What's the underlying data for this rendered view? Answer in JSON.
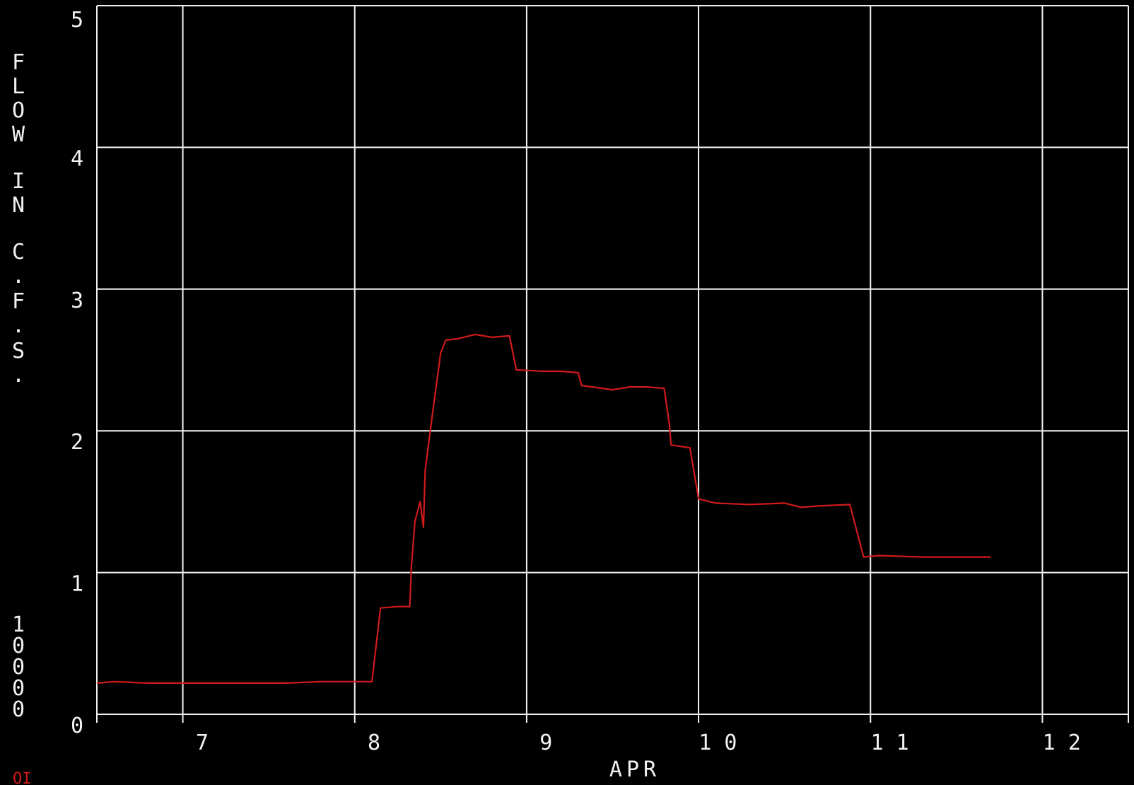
{
  "chart_data": {
    "type": "line",
    "title": "",
    "xlabel": "APR",
    "ylabel": "FLOW IN C.F.S.",
    "ylabel_multiplier": "10000",
    "xlim": [
      6.4,
      12.4
    ],
    "ylim": [
      0,
      5
    ],
    "x_ticks": [
      {
        "value": 7,
        "label": "7"
      },
      {
        "value": 8,
        "label": "8"
      },
      {
        "value": 9,
        "label": "9"
      },
      {
        "value": 10,
        "label": "10"
      },
      {
        "value": 11,
        "label": "11"
      },
      {
        "value": 12,
        "label": "12"
      }
    ],
    "y_ticks": [
      {
        "value": 0,
        "label": "0"
      },
      {
        "value": 1,
        "label": "1"
      },
      {
        "value": 2,
        "label": "2"
      },
      {
        "value": 3,
        "label": "3"
      },
      {
        "value": 4,
        "label": "4"
      },
      {
        "value": 5,
        "label": "5"
      }
    ],
    "x_grid": [
      6.9,
      7.9,
      8.9,
      9.9,
      10.9,
      11.9
    ],
    "grid": true,
    "background_color": "#000000",
    "grid_color": "#f2f2f2",
    "series": [
      {
        "color": "#d11a1a",
        "points": [
          [
            6.4,
            0.22
          ],
          [
            6.5,
            0.23
          ],
          [
            6.7,
            0.22
          ],
          [
            6.9,
            0.22
          ],
          [
            7.1,
            0.22
          ],
          [
            7.3,
            0.22
          ],
          [
            7.5,
            0.22
          ],
          [
            7.7,
            0.23
          ],
          [
            7.9,
            0.23
          ],
          [
            8.0,
            0.23
          ],
          [
            8.05,
            0.75
          ],
          [
            8.15,
            0.76
          ],
          [
            8.22,
            0.76
          ],
          [
            8.23,
            1.05
          ],
          [
            8.25,
            1.36
          ],
          [
            8.28,
            1.5
          ],
          [
            8.3,
            1.32
          ],
          [
            8.31,
            1.72
          ],
          [
            8.35,
            2.1
          ],
          [
            8.4,
            2.55
          ],
          [
            8.43,
            2.64
          ],
          [
            8.5,
            2.65
          ],
          [
            8.6,
            2.68
          ],
          [
            8.7,
            2.66
          ],
          [
            8.8,
            2.67
          ],
          [
            8.84,
            2.43
          ],
          [
            9.0,
            2.42
          ],
          [
            9.1,
            2.42
          ],
          [
            9.2,
            2.41
          ],
          [
            9.22,
            2.32
          ],
          [
            9.4,
            2.29
          ],
          [
            9.5,
            2.31
          ],
          [
            9.6,
            2.31
          ],
          [
            9.7,
            2.3
          ],
          [
            9.73,
            2.05
          ],
          [
            9.74,
            1.9
          ],
          [
            9.85,
            1.88
          ],
          [
            9.9,
            1.52
          ],
          [
            10.0,
            1.49
          ],
          [
            10.2,
            1.48
          ],
          [
            10.4,
            1.49
          ],
          [
            10.5,
            1.46
          ],
          [
            10.6,
            1.47
          ],
          [
            10.78,
            1.48
          ],
          [
            10.83,
            1.25
          ],
          [
            10.86,
            1.11
          ],
          [
            10.95,
            1.12
          ],
          [
            11.2,
            1.11
          ],
          [
            11.5,
            1.11
          ],
          [
            11.6,
            1.11
          ]
        ]
      }
    ]
  },
  "corner_label": "OI"
}
